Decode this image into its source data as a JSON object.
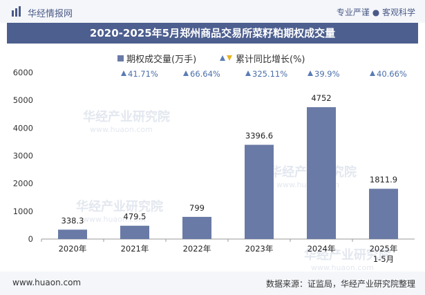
{
  "header": {
    "brand_name": "华经情报网",
    "slogan": "专业严谨 ● 客观科学"
  },
  "chart_data": {
    "type": "bar",
    "title": "2020-2025年5月郑州商品交易所菜籽粕期权成交量",
    "categories": [
      "2020年",
      "2021年",
      "2022年",
      "2023年",
      "2024年",
      "2025年\n1-5月"
    ],
    "series": [
      {
        "name": "期权成交量(万手)",
        "values": [
          338.3,
          479.5,
          799,
          3396.6,
          4752,
          1811.9
        ],
        "value_labels": [
          "338.3",
          "479.5",
          "799",
          "3396.6",
          "4752",
          "1811.9"
        ]
      },
      {
        "name": "累计同比增长(%)",
        "values": [
          null,
          41.71,
          66.64,
          325.11,
          39.9,
          40.66
        ],
        "value_labels": [
          "",
          "41.71%",
          "66.64%",
          "325.11%",
          "39.9%",
          "40.66%"
        ]
      }
    ],
    "ylim": [
      0,
      6000
    ],
    "yticks": [
      0,
      1000,
      2000,
      3000,
      4000,
      5000,
      6000
    ],
    "xlabel": "",
    "ylabel": "",
    "legend": "top-center",
    "grid": false,
    "colors": {
      "bar": "#6a7aa6",
      "growth_up": "#5a7cb5",
      "growth_down": "#e6b422",
      "growth_text": "#4a6ea9"
    }
  },
  "watermark": {
    "name": "华经产业研究院",
    "url": "www.huaon.com"
  },
  "footer": {
    "url": "www.huaon.com",
    "source": "数据来源：证监局，华经产业研究院整理"
  }
}
